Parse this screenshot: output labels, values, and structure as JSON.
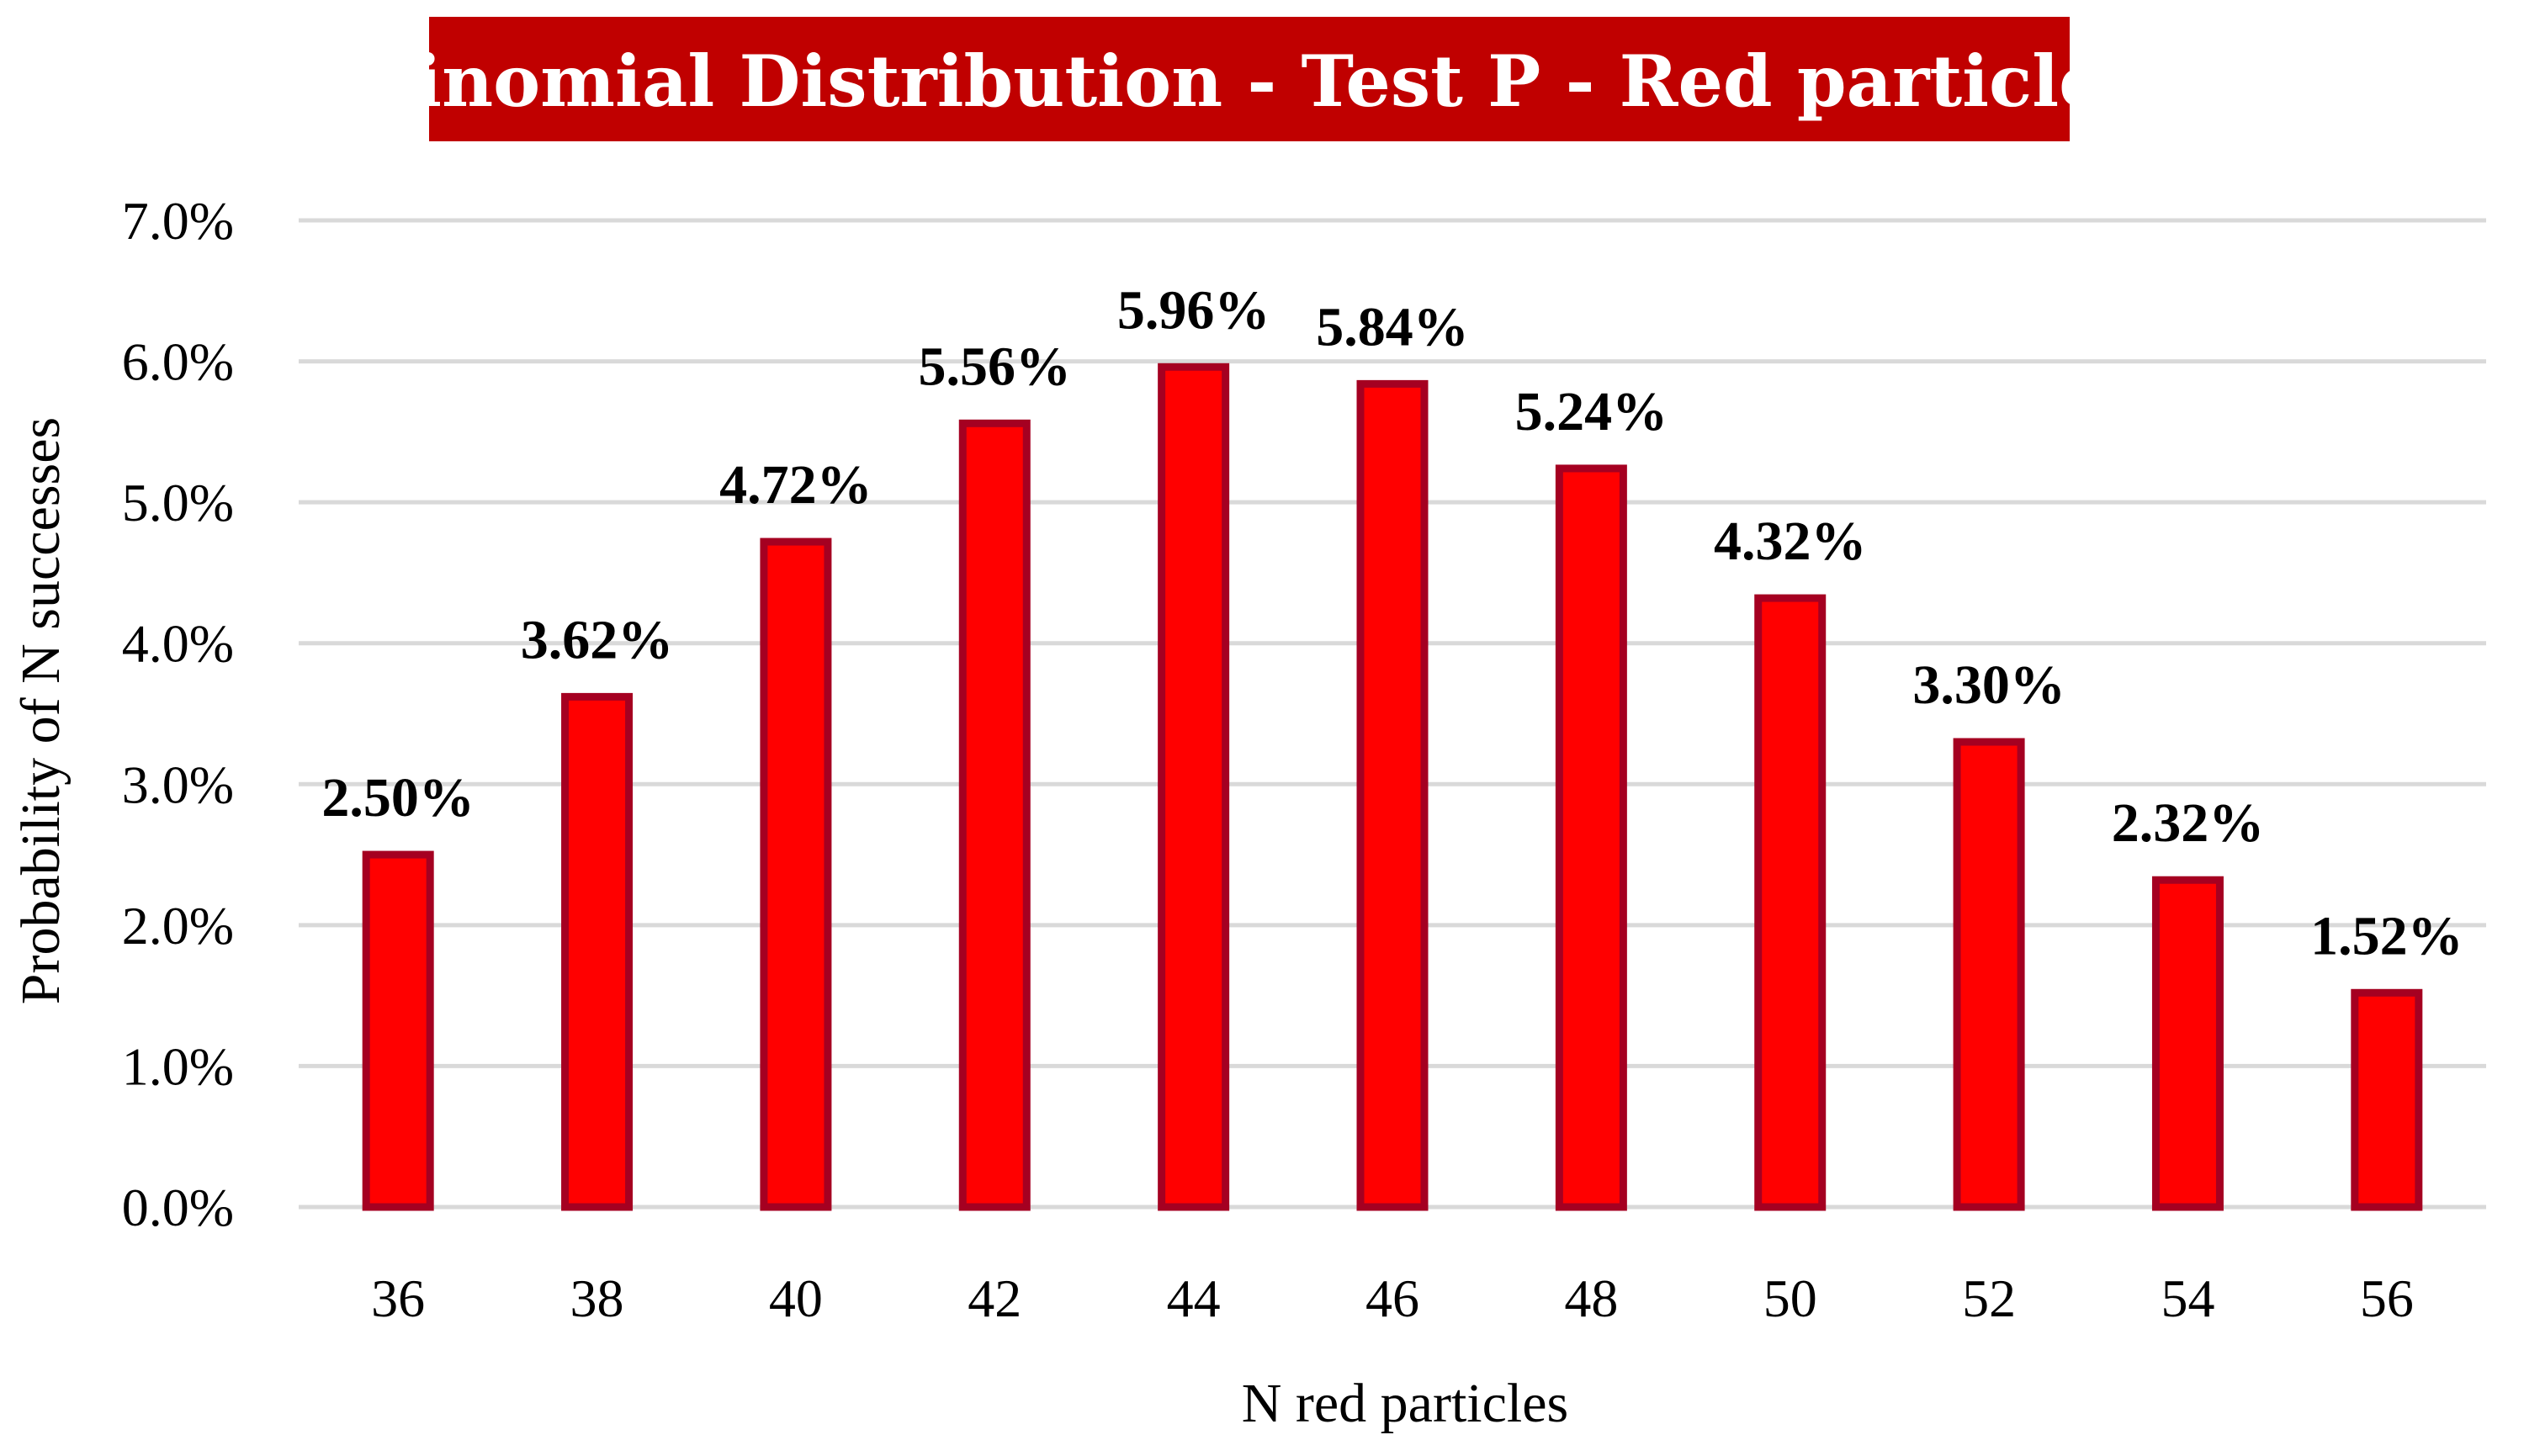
{
  "chart_data": {
    "type": "bar",
    "title": "Binomial Distribution - Test P - Red particles",
    "xlabel": "N red particles",
    "ylabel": "Probability of N successes",
    "categories": [
      "36",
      "38",
      "40",
      "42",
      "44",
      "46",
      "48",
      "50",
      "52",
      "54",
      "56"
    ],
    "values": [
      2.5,
      3.62,
      4.72,
      5.56,
      5.96,
      5.84,
      5.24,
      4.32,
      3.3,
      2.32,
      1.52
    ],
    "data_labels": [
      "2.50%",
      "3.62%",
      "4.72%",
      "5.56%",
      "5.96%",
      "5.84%",
      "5.24%",
      "4.32%",
      "3.30%",
      "2.32%",
      "1.52%"
    ],
    "ylim": [
      0,
      7
    ],
    "yticks": [
      0,
      1,
      2,
      3,
      4,
      5,
      6,
      7
    ],
    "ytick_labels": [
      "0.0%",
      "1.0%",
      "2.0%",
      "3.0%",
      "4.0%",
      "5.0%",
      "6.0%",
      "7.0%"
    ],
    "grid": true,
    "legend": "none",
    "colors": {
      "bar_fill": "#ff0000",
      "bar_outline": "#a50021",
      "title_background": "#c00000",
      "title_text": "#ffffff",
      "gridline": "#d9d9d9"
    }
  }
}
